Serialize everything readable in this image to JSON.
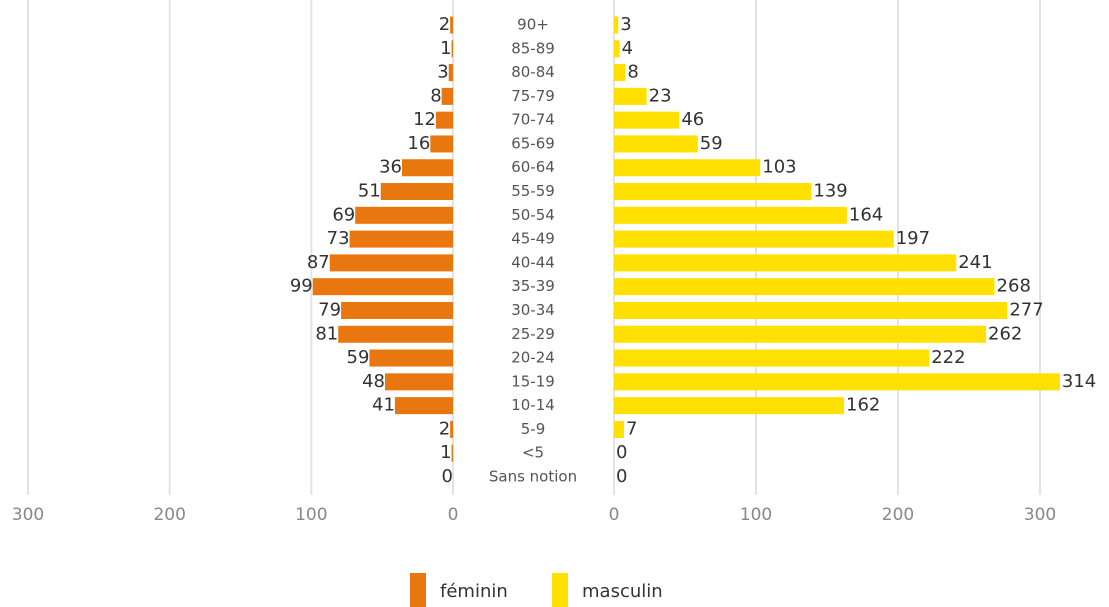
{
  "chart_data": {
    "type": "pyramid",
    "categories": [
      "90+",
      "85-89",
      "80-84",
      "75-79",
      "70-74",
      "65-69",
      "60-64",
      "55-59",
      "50-54",
      "45-49",
      "40-44",
      "35-39",
      "30-34",
      "25-29",
      "20-24",
      "15-19",
      "10-14",
      "5-9",
      "<5",
      "Sans notion"
    ],
    "series": [
      {
        "name": "féminin",
        "color": "#e8770f",
        "values": [
          2,
          1,
          3,
          8,
          12,
          16,
          36,
          51,
          69,
          73,
          87,
          99,
          79,
          81,
          59,
          48,
          41,
          2,
          1,
          0
        ]
      },
      {
        "name": "masculin",
        "color": "#ffe000",
        "values": [
          3,
          4,
          8,
          23,
          46,
          59,
          103,
          139,
          164,
          197,
          241,
          268,
          277,
          262,
          222,
          314,
          162,
          7,
          0,
          0
        ]
      }
    ],
    "xlim": [
      0,
      300
    ],
    "xticks": [
      0,
      100,
      200,
      300
    ],
    "grid": true
  }
}
